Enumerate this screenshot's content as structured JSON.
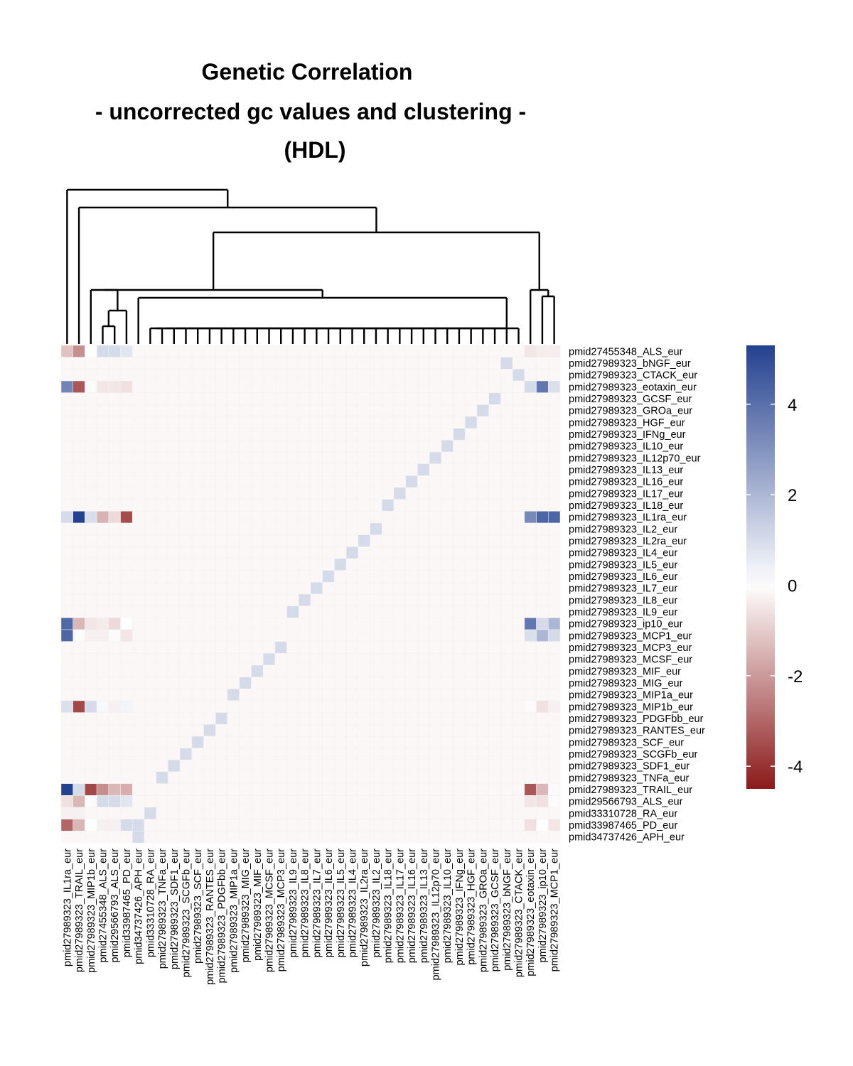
{
  "chart_data": {
    "type": "heatmap",
    "title_lines": [
      "Genetic Correlation",
      "- uncorrected gc values and clustering -",
      "(HDL)"
    ],
    "rows": [
      "pmid27455348_ALS_eur",
      "pmid27989323_bNGF_eur",
      "pmid27989323_CTACK_eur",
      "pmid27989323_eotaxin_eur",
      "pmid27989323_GCSF_eur",
      "pmid27989323_GROa_eur",
      "pmid27989323_HGF_eur",
      "pmid27989323_IFNg_eur",
      "pmid27989323_IL10_eur",
      "pmid27989323_IL12p70_eur",
      "pmid27989323_IL13_eur",
      "pmid27989323_IL16_eur",
      "pmid27989323_IL17_eur",
      "pmid27989323_IL18_eur",
      "pmid27989323_IL1ra_eur",
      "pmid27989323_IL2_eur",
      "pmid27989323_IL2ra_eur",
      "pmid27989323_IL4_eur",
      "pmid27989323_IL5_eur",
      "pmid27989323_IL6_eur",
      "pmid27989323_IL7_eur",
      "pmid27989323_IL8_eur",
      "pmid27989323_IL9_eur",
      "pmid27989323_ip10_eur",
      "pmid27989323_MCP1_eur",
      "pmid27989323_MCP3_eur",
      "pmid27989323_MCSF_eur",
      "pmid27989323_MIF_eur",
      "pmid27989323_MIG_eur",
      "pmid27989323_MIP1a_eur",
      "pmid27989323_MIP1b_eur",
      "pmid27989323_PDGFbb_eur",
      "pmid27989323_RANTES_eur",
      "pmid27989323_SCF_eur",
      "pmid27989323_SCGFb_eur",
      "pmid27989323_SDF1_eur",
      "pmid27989323_TNFa_eur",
      "pmid27989323_TRAIL_eur",
      "pmid29566793_ALS_eur",
      "pmid33310728_RA_eur",
      "pmid33987465_PD_eur",
      "pmid34737426_APH_eur"
    ],
    "columns": [
      "pmid27989323_IL1ra_eur",
      "pmid27989323_TRAIL_eur",
      "pmid27989323_MIP1b_eur",
      "pmid27455348_ALS_eur",
      "pmid29566793_ALS_eur",
      "pmid33987465_PD_eur",
      "pmid34737426_APH_eur",
      "pmid33310728_RA_eur",
      "pmid27989323_TNFa_eur",
      "pmid27989323_SDF1_eur",
      "pmid27989323_SCGFb_eur",
      "pmid27989323_SCF_eur",
      "pmid27989323_RANTES_eur",
      "pmid27989323_PDGFbb_eur",
      "pmid27989323_MIP1a_eur",
      "pmid27989323_MIG_eur",
      "pmid27989323_MIF_eur",
      "pmid27989323_MCSF_eur",
      "pmid27989323_MCP3_eur",
      "pmid27989323_IL9_eur",
      "pmid27989323_IL8_eur",
      "pmid27989323_IL7_eur",
      "pmid27989323_IL6_eur",
      "pmid27989323_IL5_eur",
      "pmid27989323_IL4_eur",
      "pmid27989323_IL2ra_eur",
      "pmid27989323_IL2_eur",
      "pmid27989323_IL18_eur",
      "pmid27989323_IL17_eur",
      "pmid27989323_IL16_eur",
      "pmid27989323_IL13_eur",
      "pmid27989323_IL12p70_eur",
      "pmid27989323_IL10_eur",
      "pmid27989323_IFNg_eur",
      "pmid27989323_HGF_eur",
      "pmid27989323_GROa_eur",
      "pmid27989323_GCSF_eur",
      "pmid27989323_bNGF_eur",
      "pmid27989323_CTACK_eur",
      "pmid27989323_eotaxin_eur",
      "pmid27989323_ip10_eur",
      "pmid27989323_MCP1_eur"
    ],
    "default_value": -0.15,
    "diagonal_value": 1,
    "cell_values": [
      {
        "row": "pmid27455348_ALS_eur",
        "values": {
          "pmid27989323_IL1ra_eur": -1.2,
          "pmid27989323_TRAIL_eur": -2.2,
          "pmid27989323_MIP1b_eur": 0.0,
          "pmid29566793_ALS_eur": 1.0,
          "pmid33987465_PD_eur": 0.7,
          "pmid27989323_eotaxin_eur": -0.5,
          "pmid27989323_ip10_eur": -0.35,
          "pmid27989323_MCP1_eur": -0.35
        }
      },
      {
        "row": "pmid27989323_eotaxin_eur",
        "values": {
          "pmid27989323_IL1ra_eur": 3.4,
          "pmid27989323_TRAIL_eur": -3.3,
          "pmid27989323_MIP1b_eur": -0.1,
          "pmid27455348_ALS_eur": -0.5,
          "pmid29566793_ALS_eur": -0.5,
          "pmid33987465_PD_eur": -0.6,
          "pmid27989323_ip10_eur": 3.8,
          "pmid27989323_MCP1_eur": 0.9
        }
      },
      {
        "row": "pmid27989323_IL1ra_eur",
        "values": {
          "pmid27989323_TRAIL_eur": 5.3,
          "pmid27989323_MIP1b_eur": 0.9,
          "pmid27455348_ALS_eur": -1.5,
          "pmid29566793_ALS_eur": -0.7,
          "pmid33987465_PD_eur": -3.5,
          "pmid27989323_eotaxin_eur": 3.3,
          "pmid27989323_ip10_eur": 4.3,
          "pmid27989323_MCP1_eur": 4.3
        }
      },
      {
        "row": "pmid27989323_ip10_eur",
        "values": {
          "pmid27989323_IL1ra_eur": 4.2,
          "pmid27989323_TRAIL_eur": -1.4,
          "pmid27989323_MIP1b_eur": -0.5,
          "pmid27455348_ALS_eur": -0.4,
          "pmid29566793_ALS_eur": -0.7,
          "pmid33987465_PD_eur": 0.0,
          "pmid27989323_eotaxin_eur": 3.8,
          "pmid27989323_MCP1_eur": 2.0
        }
      },
      {
        "row": "pmid27989323_MCP1_eur",
        "values": {
          "pmid27989323_IL1ra_eur": 4.3,
          "pmid27989323_TRAIL_eur": -0.1,
          "pmid27989323_MIP1b_eur": -0.3,
          "pmid27455348_ALS_eur": -0.3,
          "pmid29566793_ALS_eur": -0.1,
          "pmid33987465_PD_eur": -0.5,
          "pmid27989323_eotaxin_eur": 0.9,
          "pmid27989323_ip10_eur": 2.0
        }
      },
      {
        "row": "pmid27989323_MIP1b_eur",
        "values": {
          "pmid27989323_IL1ra_eur": 0.9,
          "pmid27989323_TRAIL_eur": -3.6,
          "pmid27455348_ALS_eur": 0.2,
          "pmid29566793_ALS_eur": -0.3,
          "pmid33987465_PD_eur": 0.3,
          "pmid27989323_eotaxin_eur": -0.1,
          "pmid27989323_ip10_eur": -0.6,
          "pmid27989323_MCP1_eur": -0.3
        }
      },
      {
        "row": "pmid27989323_TRAIL_eur",
        "values": {
          "pmid27989323_IL1ra_eur": 5.3,
          "pmid27989323_MIP1b_eur": -3.6,
          "pmid27455348_ALS_eur": -2.2,
          "pmid29566793_ALS_eur": -1.4,
          "pmid33987465_PD_eur": -1.6,
          "pmid27989323_eotaxin_eur": -3.3,
          "pmid27989323_ip10_eur": -1.4,
          "pmid27989323_MCP1_eur": -0.1
        }
      },
      {
        "row": "pmid29566793_ALS_eur",
        "values": {
          "pmid27989323_IL1ra_eur": -0.6,
          "pmid27989323_TRAIL_eur": -1.4,
          "pmid27989323_MIP1b_eur": -0.1,
          "pmid27455348_ALS_eur": 1.0,
          "pmid33987465_PD_eur": 0.7,
          "pmid27989323_eotaxin_eur": -0.5,
          "pmid27989323_ip10_eur": -0.6,
          "pmid27989323_MCP1_eur": -0.1
        }
      },
      {
        "row": "pmid33310728_RA_eur",
        "values": {
          "pmid27989323_IL1ra_eur": -0.3,
          "pmid27989323_TRAIL_eur": -0.3
        }
      },
      {
        "row": "pmid33987465_PD_eur",
        "values": {
          "pmid27989323_IL1ra_eur": -3.0,
          "pmid27989323_TRAIL_eur": -1.4,
          "pmid27989323_MIP1b_eur": 0.0,
          "pmid27455348_ALS_eur": -0.3,
          "pmid29566793_ALS_eur": -0.3,
          "pmid34737426_APH_eur": 1.0,
          "pmid27989323_eotaxin_eur": -0.6,
          "pmid27989323_ip10_eur": 0.0,
          "pmid27989323_MCP1_eur": -0.5
        }
      }
    ],
    "legend": {
      "ticks": [
        "4",
        "2",
        "0",
        "-2",
        "-4"
      ],
      "tick_values": [
        4,
        2,
        0,
        -2,
        -4
      ],
      "range": [
        -4.5,
        5.3
      ],
      "colors": {
        "high": "#24418f",
        "mid": "#ffffff",
        "low": "#8b1a1a"
      }
    },
    "column_dendrogram": "present (top)"
  }
}
